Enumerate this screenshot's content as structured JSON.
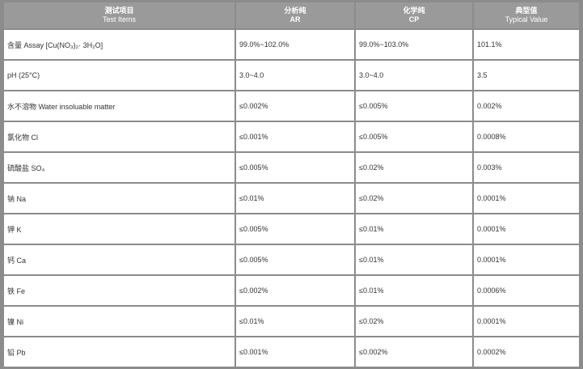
{
  "headers": [
    {
      "cn": "测试项目",
      "en": "Test Items"
    },
    {
      "cn": "分析纯",
      "en": "AR"
    },
    {
      "cn": "化学纯",
      "en": "CP"
    },
    {
      "cn": "典型值",
      "en": "Typical Value"
    }
  ],
  "rows": [
    {
      "item": "含量 Assay [Cu(NO₃)₂· 3H₂O]",
      "ar": "99.0%~102.0%",
      "cp": "99.0%~103.0%",
      "typical": "101.1%"
    },
    {
      "item": "pH  (25°C)",
      "ar": "3.0~4.0",
      "cp": "3.0~4.0",
      "typical": "3.5"
    },
    {
      "item": "水不溶物  Water insoluable matter",
      "ar": "≤0.002%",
      "cp": "≤0.005%",
      "typical": "0.002%"
    },
    {
      "item": "氯化物  Cl",
      "ar": "≤0.001%",
      "cp": "≤0.005%",
      "typical": "0.0008%"
    },
    {
      "item": "硫酸盐  SO₄",
      "ar": "≤0.005%",
      "cp": "≤0.02%",
      "typical": "0.003%"
    },
    {
      "item": "钠  Na",
      "ar": "≤0.01%",
      "cp": "≤0.02%",
      "typical": "0.0001%"
    },
    {
      "item": "钾  K",
      "ar": "≤0.005%",
      "cp": "≤0.01%",
      "typical": "0.0001%"
    },
    {
      "item": "钙  Ca",
      "ar": "≤0.005%",
      "cp": "≤0.01%",
      "typical": "0.0001%"
    },
    {
      "item": "铁  Fe",
      "ar": "≤0.002%",
      "cp": "≤0.01%",
      "typical": "0.0006%"
    },
    {
      "item": "镍  Ni",
      "ar": "≤0.01%",
      "cp": "≤0.02%",
      "typical": "0.0001%"
    },
    {
      "item": "铅  Pb",
      "ar": "≤0.001%",
      "cp": "≤0.002%",
      "typical": "0.0002%"
    }
  ]
}
